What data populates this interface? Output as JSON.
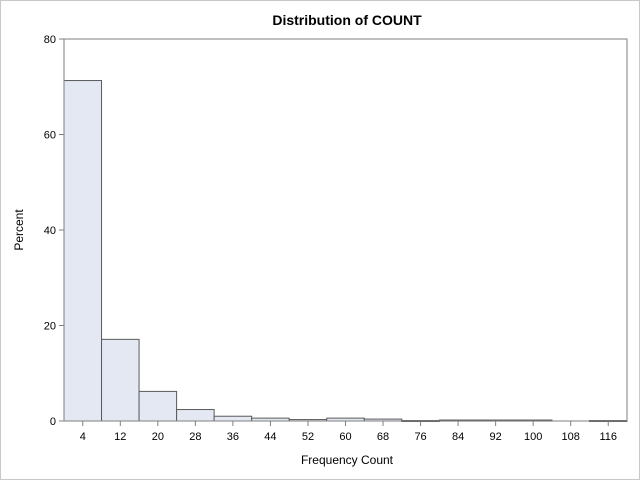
{
  "chart_data": {
    "type": "bar",
    "title": "Distribution of COUNT",
    "xlabel": "Frequency Count",
    "ylabel": "Percent",
    "ylim": [
      0,
      80
    ],
    "yticks": [
      0,
      20,
      40,
      60,
      80
    ],
    "xlim": [
      0,
      120
    ],
    "bin_width": 8,
    "categories": [
      "4",
      "12",
      "20",
      "28",
      "36",
      "44",
      "52",
      "60",
      "68",
      "76",
      "84",
      "92",
      "100",
      "108",
      "116"
    ],
    "midpoints": [
      4,
      12,
      20,
      28,
      36,
      44,
      52,
      60,
      68,
      76,
      84,
      92,
      100,
      108,
      116
    ],
    "values": [
      71.3,
      17.1,
      6.2,
      2.4,
      1.0,
      0.6,
      0.3,
      0.6,
      0.4,
      0.1,
      0.2,
      0.2,
      0.2,
      0.0,
      0.1
    ],
    "colors": {
      "bar_fill": "#e3e8f2",
      "bar_stroke": "#5a5a5a",
      "axis": "#7f7f7f"
    },
    "grid": false,
    "legend": "none"
  }
}
